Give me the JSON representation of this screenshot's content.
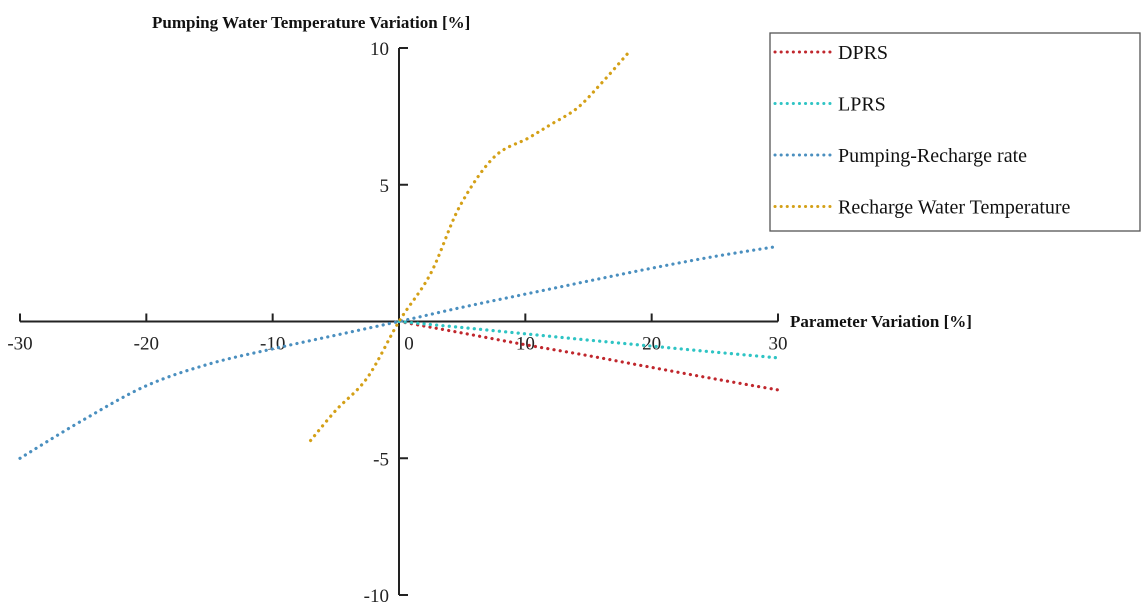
{
  "chart_data": {
    "type": "line",
    "title": "",
    "xlabel": "Parameter Variation [%]",
    "ylabel": "Pumping Water Temperature Variation [%]",
    "xlim": [
      -30,
      30
    ],
    "ylim": [
      -10,
      10
    ],
    "x_ticks": [
      -30,
      -20,
      -10,
      0,
      10,
      20,
      30
    ],
    "x_tick_labels": [
      "-30",
      "-20",
      "-10",
      "0",
      "10",
      "20",
      "30"
    ],
    "y_ticks": [
      10,
      5,
      -5,
      -10
    ],
    "y_tick_labels": [
      "10",
      "5",
      "-5",
      "-10"
    ],
    "grid": false,
    "legend_position": "top-right",
    "series": [
      {
        "name": "DPRS",
        "color": "#c0272d",
        "x": [
          0,
          5,
          10,
          15,
          20,
          25,
          30
        ],
        "y": [
          0,
          -0.42,
          -0.85,
          -1.25,
          -1.68,
          -2.1,
          -2.5
        ]
      },
      {
        "name": "LPRS",
        "color": "#2ec4c4",
        "x": [
          0,
          5,
          10,
          15,
          20,
          25,
          30
        ],
        "y": [
          0,
          -0.22,
          -0.45,
          -0.68,
          -0.9,
          -1.12,
          -1.33
        ]
      },
      {
        "name": "Pumping-Recharge rate",
        "color": "#4a8fbf",
        "x": [
          -30,
          -25,
          -20,
          -15,
          -10,
          -5,
          0,
          5,
          10,
          15,
          20,
          25,
          30
        ],
        "y": [
          -5.0,
          -3.6,
          -2.35,
          -1.55,
          -1.0,
          -0.5,
          0,
          0.52,
          1.0,
          1.48,
          1.95,
          2.38,
          2.75
        ]
      },
      {
        "name": "Recharge Water Temperature",
        "color": "#d4a017",
        "x": [
          -7,
          -5,
          -2.5,
          0,
          2.5,
          4.8,
          7.5,
          10.2,
          12,
          14.1,
          16,
          18.3
        ],
        "y": [
          -4.35,
          -3.25,
          -2.05,
          0,
          1.75,
          4.2,
          6.0,
          6.7,
          7.2,
          7.8,
          8.7,
          9.9
        ]
      }
    ]
  }
}
